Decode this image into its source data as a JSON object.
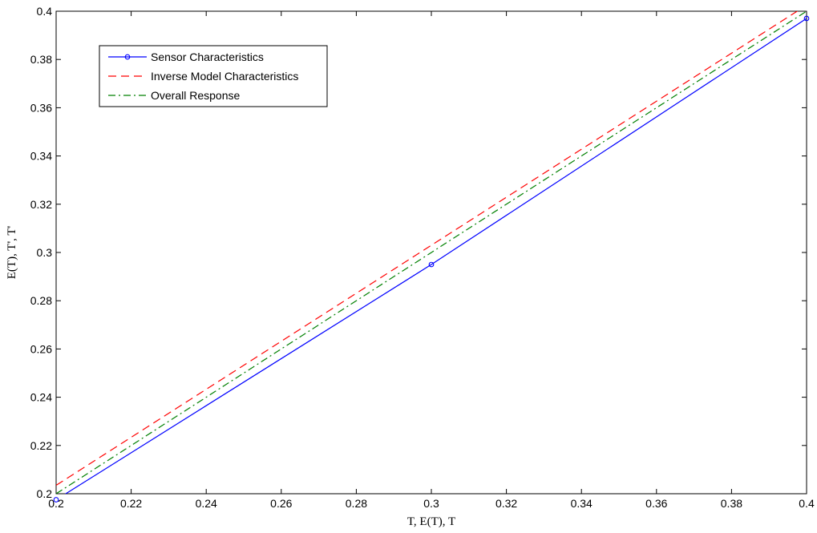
{
  "chart_data": {
    "type": "line",
    "title": "",
    "xlabel": "T, E(T), T",
    "ylabel": "E(T), T', T'",
    "xlim": [
      0.2,
      0.4
    ],
    "ylim": [
      0.2,
      0.4
    ],
    "xticks": [
      "0.2",
      "0.22",
      "0.24",
      "0.26",
      "0.28",
      "0.3",
      "0.32",
      "0.34",
      "0.36",
      "0.38",
      "0.4"
    ],
    "yticks": [
      "0.2",
      "0.22",
      "0.24",
      "0.26",
      "0.28",
      "0.3",
      "0.32",
      "0.34",
      "0.36",
      "0.38",
      "0.4"
    ],
    "grid": false,
    "legend_position": "top-left",
    "series": [
      {
        "name": "Sensor Characteristics",
        "style": "solid",
        "marker": "circle",
        "color": "#0000ff",
        "x": [
          0.2,
          0.3,
          0.4
        ],
        "y": [
          0.1975,
          0.295,
          0.397
        ]
      },
      {
        "name": "Inverse Model Characteristics",
        "style": "dashed",
        "marker": "none",
        "color": "#ff0000",
        "x": [
          0.2,
          0.4
        ],
        "y": [
          0.2035,
          0.4025
        ]
      },
      {
        "name": "Overall Response",
        "style": "dash-dot",
        "marker": "none",
        "color": "#008000",
        "x": [
          0.2,
          0.4
        ],
        "y": [
          0.2,
          0.4
        ]
      }
    ]
  }
}
